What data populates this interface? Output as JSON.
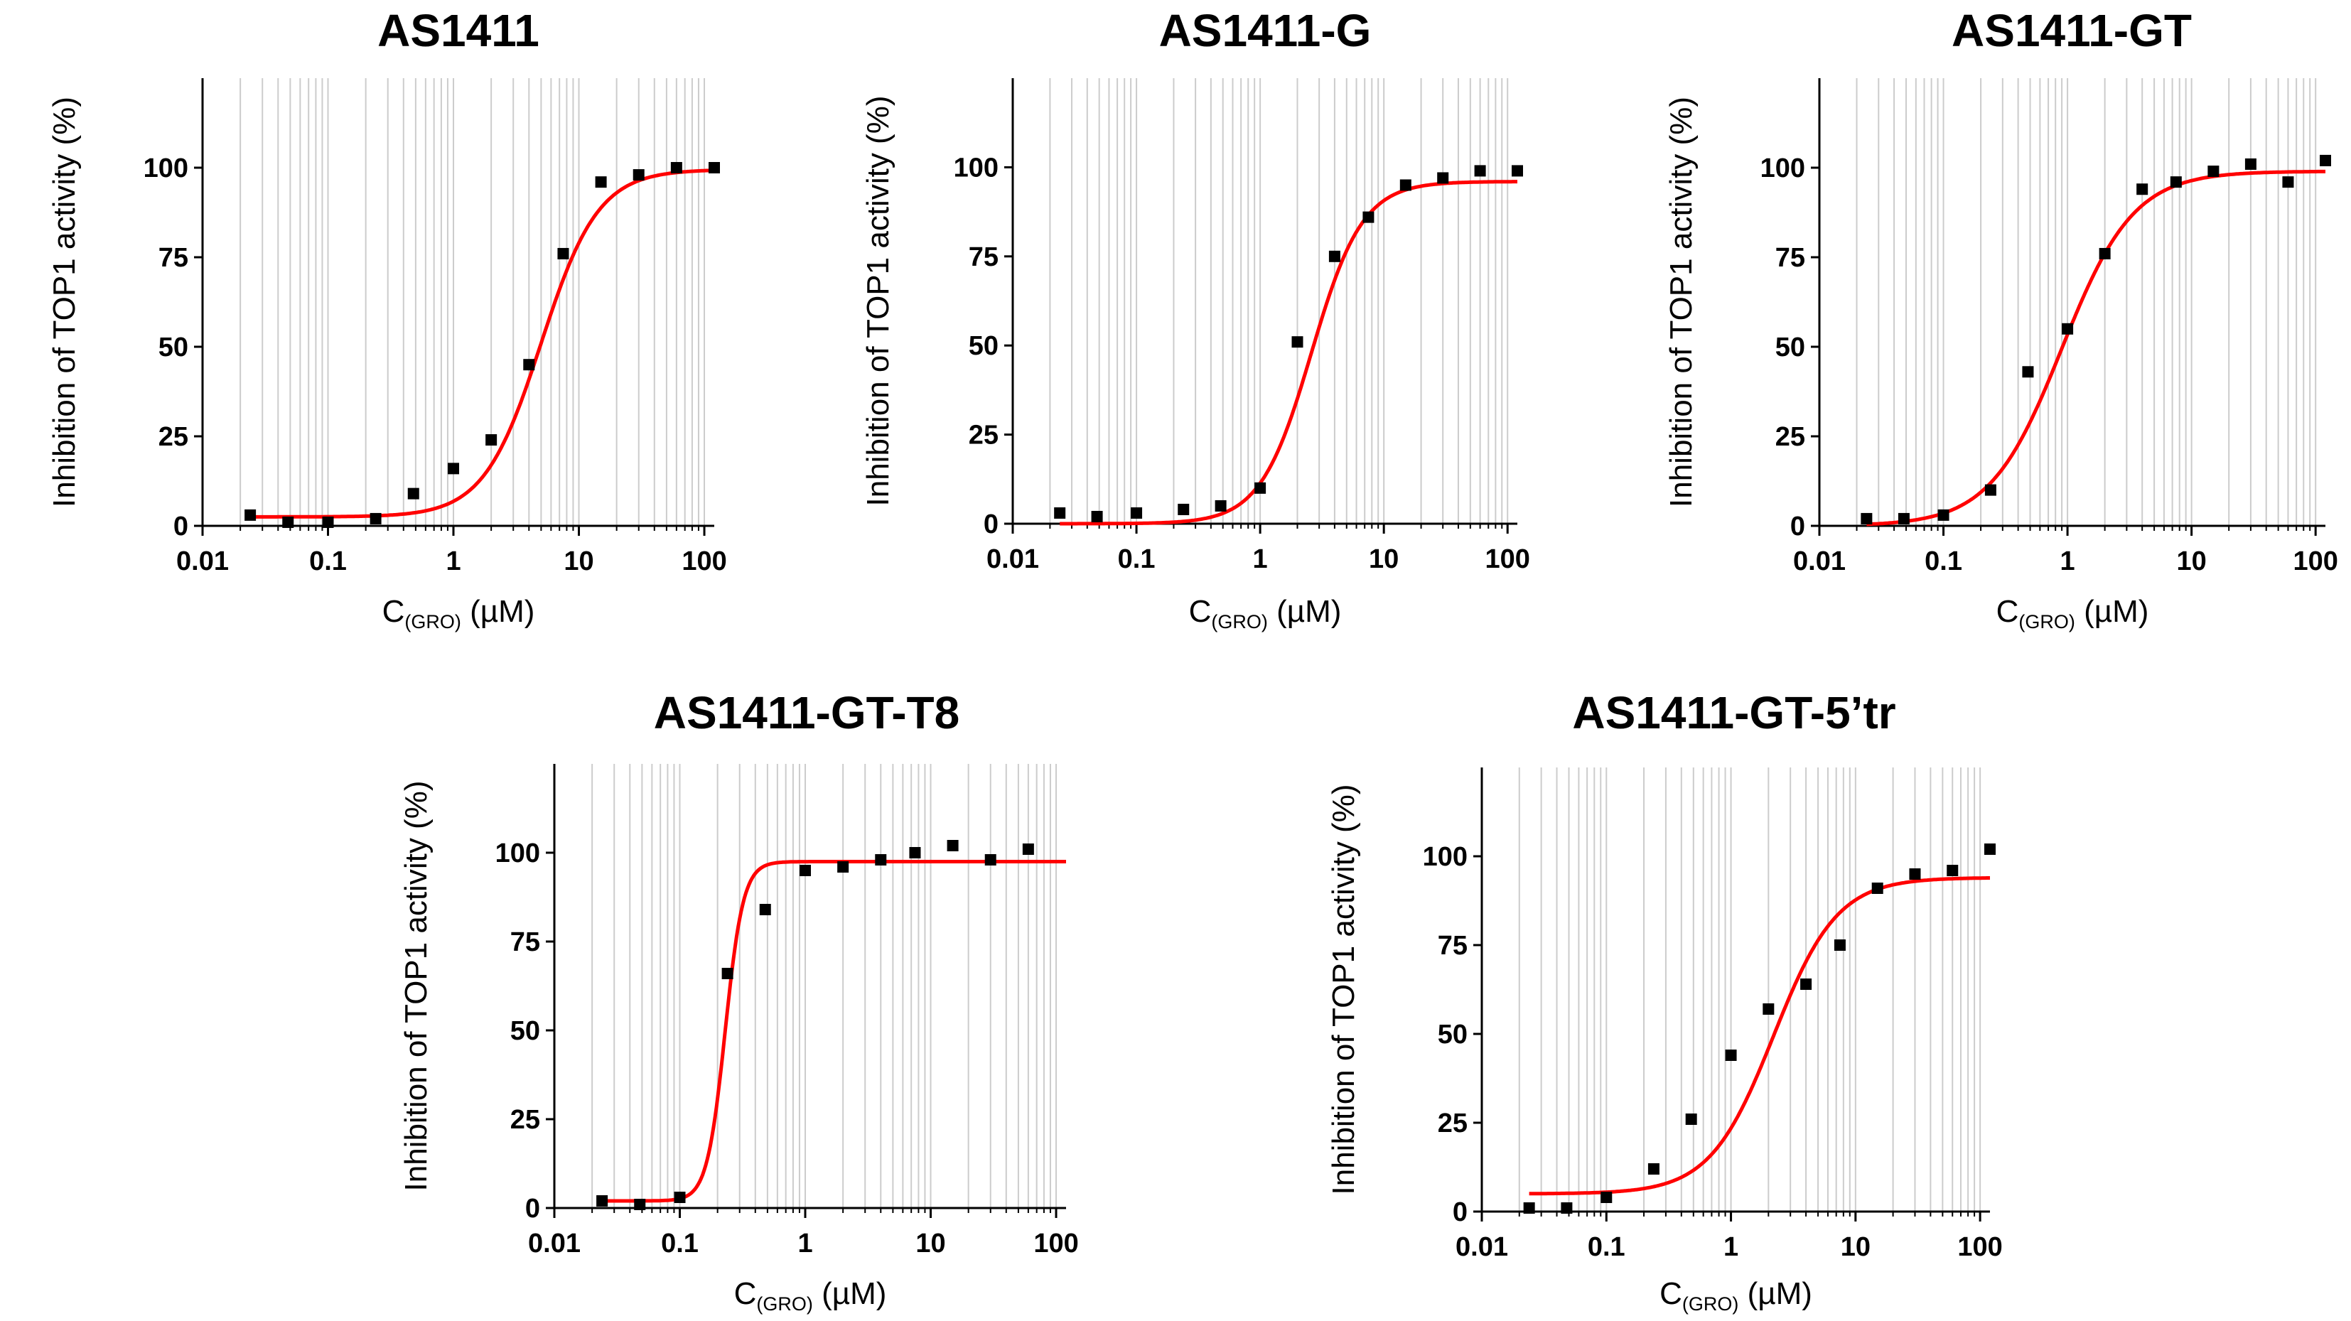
{
  "colors": {
    "curve": "#ff0000",
    "points": "#000000",
    "grid": "#cccccc",
    "axis": "#000000"
  },
  "chart_data": [
    {
      "type": "scatter",
      "title": "AS1411",
      "xlabel": {
        "main": "C",
        "sub": "(GRO)",
        "unit": "(µM)"
      },
      "ylabel": "Inhibition of TOP1 activity (%)",
      "xscale": "log",
      "xlim": [
        0.01,
        120
      ],
      "ylim": [
        0,
        125
      ],
      "xticks": [
        "0.01",
        "0.1",
        "1",
        "10",
        "100"
      ],
      "yticks": [
        "0",
        "25",
        "50",
        "75",
        "100"
      ],
      "grid": "vertical minor (log decades)",
      "points": {
        "x": [
          0.024,
          0.048,
          0.1,
          0.24,
          0.48,
          1,
          2,
          4,
          7.5,
          15,
          30,
          60,
          120
        ],
        "y": [
          3,
          1,
          1,
          2,
          9,
          16,
          24,
          45,
          76,
          96,
          98,
          100,
          100
        ]
      },
      "fit": {
        "model": "four-parameter logistic",
        "bottom": 2.5,
        "top": 99.5,
        "ec50": 5.0,
        "hill": 1.9,
        "x_range": [
          0.024,
          120
        ]
      }
    },
    {
      "type": "scatter",
      "title": "AS1411-G",
      "xlabel": {
        "main": "C",
        "sub": "(GRO)",
        "unit": "(µM)"
      },
      "ylabel": "Inhibition of TOP1 activity (%)",
      "xscale": "log",
      "xlim": [
        0.01,
        120
      ],
      "ylim": [
        0,
        125
      ],
      "xticks": [
        "0.01",
        "0.1",
        "1",
        "10",
        "100"
      ],
      "yticks": [
        "0",
        "25",
        "50",
        "75",
        "100"
      ],
      "grid": "vertical minor (log decades)",
      "points": {
        "x": [
          0.024,
          0.048,
          0.1,
          0.24,
          0.48,
          1,
          2,
          4,
          7.5,
          15,
          30,
          60,
          120
        ],
        "y": [
          3,
          2,
          3,
          4,
          5,
          10,
          51,
          75,
          86,
          95,
          97,
          99,
          99
        ]
      },
      "fit": {
        "model": "four-parameter logistic",
        "bottom": 0,
        "top": 96,
        "ec50": 2.6,
        "hill": 2.1,
        "x_range": [
          0.024,
          120
        ]
      }
    },
    {
      "type": "scatter",
      "title": "AS1411-GT",
      "xlabel": {
        "main": "C",
        "sub": "(GRO)",
        "unit": "(µM)"
      },
      "ylabel": "Inhibition of TOP1 activity (%)",
      "xscale": "log",
      "xlim": [
        0.01,
        120
      ],
      "ylim": [
        0,
        125
      ],
      "xticks": [
        "0.01",
        "0.1",
        "1",
        "10",
        "100"
      ],
      "yticks": [
        "0",
        "25",
        "50",
        "75",
        "100"
      ],
      "grid": "vertical minor (log decades)",
      "points": {
        "x": [
          0.024,
          0.048,
          0.1,
          0.24,
          0.48,
          1,
          2,
          4,
          7.5,
          15,
          30,
          60,
          120
        ],
        "y": [
          2,
          2,
          3,
          10,
          43,
          55,
          76,
          94,
          96,
          99,
          101,
          96,
          102
        ]
      },
      "fit": {
        "model": "four-parameter logistic",
        "bottom": 0,
        "top": 99,
        "ec50": 0.9,
        "hill": 1.5,
        "x_range": [
          0.024,
          120
        ]
      }
    },
    {
      "type": "scatter",
      "title": "AS1411-GT-T8",
      "xlabel": {
        "main": "C",
        "sub": "(GRO)",
        "unit": "(µM)"
      },
      "ylabel": "Inhibition of TOP1 activity (%)",
      "xscale": "log",
      "xlim": [
        0.01,
        120
      ],
      "ylim": [
        0,
        125
      ],
      "xticks": [
        "0.01",
        "0.1",
        "1",
        "10",
        "100"
      ],
      "yticks": [
        "0",
        "25",
        "50",
        "75",
        "100"
      ],
      "grid": "vertical minor (log decades)",
      "points": {
        "x": [
          0.024,
          0.048,
          0.1,
          0.24,
          0.48,
          1,
          2,
          4,
          7.5,
          15,
          30,
          60
        ],
        "y": [
          2,
          1,
          3,
          66,
          84,
          95,
          96,
          98,
          100,
          102,
          98,
          101
        ]
      },
      "fit": {
        "model": "four-parameter logistic",
        "bottom": 2,
        "top": 97.5,
        "ec50": 0.23,
        "hill": 6,
        "x_range": [
          0.024,
          120
        ]
      }
    },
    {
      "type": "scatter",
      "title": "AS1411-GT-5’tr",
      "xlabel": {
        "main": "C",
        "sub": "(GRO)",
        "unit": "(µM)"
      },
      "ylabel": "Inhibition of TOP1 activity (%)",
      "xscale": "log",
      "xlim": [
        0.01,
        120
      ],
      "ylim": [
        0,
        125
      ],
      "xticks": [
        "0.01",
        "0.1",
        "1",
        "10",
        "100"
      ],
      "yticks": [
        "0",
        "25",
        "50",
        "75",
        "100"
      ],
      "grid": "vertical minor (log decades)",
      "points": {
        "x": [
          0.024,
          0.048,
          0.1,
          0.24,
          0.48,
          1,
          2,
          4,
          7.5,
          15,
          30,
          60,
          120
        ],
        "y": [
          1,
          1,
          4,
          12,
          26,
          44,
          57,
          64,
          75,
          91,
          95,
          96,
          102
        ]
      },
      "fit": {
        "model": "four-parameter logistic",
        "bottom": 5,
        "top": 94,
        "ec50": 2.2,
        "hill": 1.7,
        "x_range": [
          0.024,
          120
        ]
      }
    }
  ]
}
